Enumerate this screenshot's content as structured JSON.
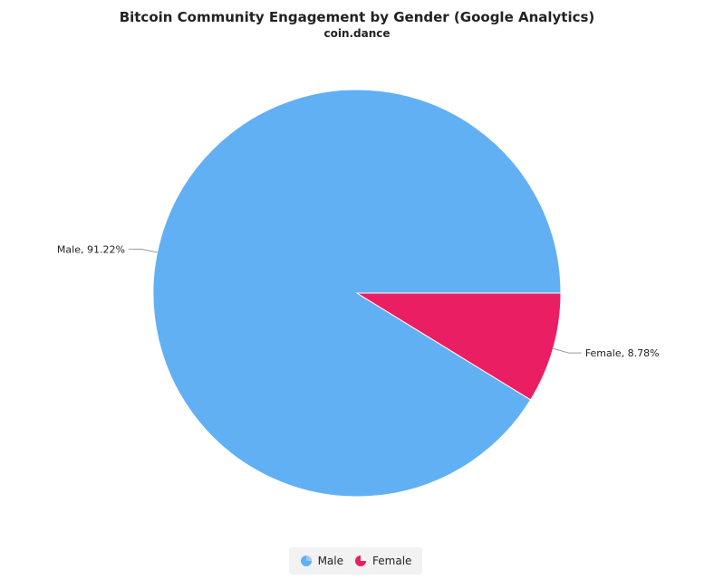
{
  "chart_data": {
    "type": "pie",
    "title": "Bitcoin Community Engagement by Gender (Google Analytics)",
    "subtitle": "coin.dance",
    "slices": [
      {
        "name": "Male",
        "value": 91.22,
        "label": "Male, 91.22%",
        "color": "#62b0f4"
      },
      {
        "name": "Female",
        "value": 8.78,
        "label": "Female, 8.78%",
        "color": "#e91e63"
      }
    ],
    "legend": {
      "placement": "bottom-center",
      "items": [
        "Male",
        "Female"
      ]
    }
  },
  "colors": {
    "male": "#62b0f4",
    "female": "#e91e63",
    "legend_background": "#f2f2f2",
    "connector": "#999999"
  }
}
